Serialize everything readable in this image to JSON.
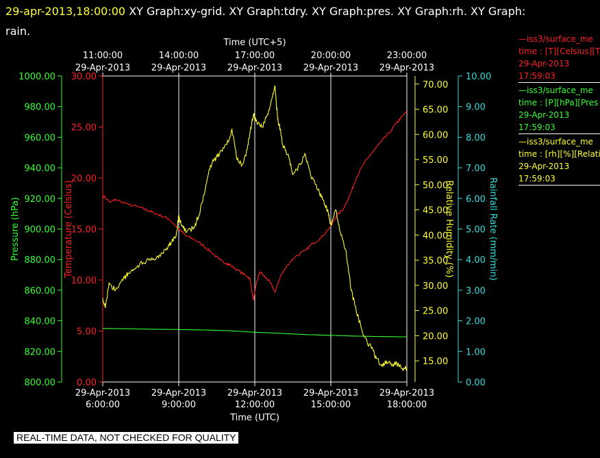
{
  "header": {
    "datetime": "29-apr-2013,18:00:00",
    "graphs_line1": "XY Graph:xy-grid.  XY Graph:tdry.  XY Graph:pres.  XY Graph:rh.  XY Graph:",
    "graphs_line2": "rain."
  },
  "legend": [
    {
      "name": "—iss3/surface_me",
      "var": "time : [T][Celsius][T",
      "date": "29-Apr-2013",
      "time": "17:59:03",
      "color": "#ff2020"
    },
    {
      "name": "—iss3/surface_me",
      "var": "time : [P][hPa][Pres",
      "date": "29-Apr-2013",
      "time": "17:59:03",
      "color": "#33ff33"
    },
    {
      "name": "—iss3/surface_me",
      "var": "time : [rh][%][Relati",
      "date": "29-Apr-2013",
      "time": "17:59:03",
      "color": "#ffff33"
    }
  ],
  "footer": {
    "quality_note": "REAL-TIME DATA, NOT CHECKED FOR QUALITY"
  },
  "chart_data": {
    "type": "line",
    "x_bottom": {
      "label": "Time (UTC)",
      "ticks": [
        {
          "date": "29-Apr-2013",
          "time": "6:00:00"
        },
        {
          "date": "29-Apr-2013",
          "time": "9:00:00"
        },
        {
          "date": "29-Apr-2013",
          "time": "12:00:00"
        },
        {
          "date": "29-Apr-2013",
          "time": "15:00:00"
        },
        {
          "date": "29-Apr-2013",
          "time": "18:00:00"
        }
      ],
      "range_hours_utc": [
        6,
        18
      ]
    },
    "x_top": {
      "label": "Time (UTC+5)",
      "ticks": [
        {
          "date": "29-Apr-2013",
          "time": "11:00:00"
        },
        {
          "date": "29-Apr-2013",
          "time": "14:00:00"
        },
        {
          "date": "29-Apr-2013",
          "time": "17:00:00"
        },
        {
          "date": "29-Apr-2013",
          "time": "20:00:00"
        },
        {
          "date": "29-Apr-2013",
          "time": "23:00:00"
        }
      ]
    },
    "axes": {
      "pressure": {
        "label": "Pressure (hPa)",
        "color": "#33ff33",
        "ylim": [
          800,
          1000
        ],
        "ticks": [
          "800.00",
          "820.00",
          "840.00",
          "860.00",
          "880.00",
          "900.00",
          "920.00",
          "940.00",
          "960.00",
          "980.00",
          "1000.00"
        ]
      },
      "temperature": {
        "label": "Temperature (Celsius)",
        "color": "#ff2020",
        "ylim": [
          0,
          30
        ],
        "ticks": [
          "0.00",
          "5.00",
          "10.00",
          "15.00",
          "20.00",
          "25.00",
          "30.00"
        ]
      },
      "rh": {
        "label": "Relative Humidity (%)",
        "color": "#ffff33",
        "ylim": [
          10.8,
          71.6
        ],
        "ticks": [
          "15.00",
          "20.00",
          "25.00",
          "30.00",
          "35.00",
          "40.00",
          "45.00",
          "50.00",
          "55.00",
          "60.00",
          "65.00",
          "70.00"
        ]
      },
      "rain": {
        "label": "Rainfall Rate (mm/min)",
        "color": "#33dddd",
        "ylim": [
          0,
          10
        ],
        "ticks": [
          "0.00",
          "1.00",
          "2.00",
          "3.00",
          "4.00",
          "5.00",
          "6.00",
          "7.00",
          "8.00",
          "9.00",
          "10.00"
        ]
      }
    },
    "grid": "vertical",
    "series": [
      {
        "name": "iss3/surface_me",
        "axis": "temperature",
        "color": "#ff2020",
        "x": [
          6.0,
          6.3,
          6.5,
          7.0,
          7.5,
          7.8,
          8.0,
          8.3,
          8.6,
          9.0,
          9.3,
          9.6,
          10.0,
          10.3,
          10.6,
          10.9,
          11.0,
          11.3,
          11.6,
          11.8,
          11.95,
          12.05,
          12.2,
          12.4,
          12.6,
          12.8,
          13.0,
          13.3,
          13.6,
          14.0,
          14.3,
          14.6,
          15.0,
          15.2,
          15.5,
          15.8,
          16.0,
          16.3,
          16.6,
          17.0,
          17.3,
          17.6,
          17.8,
          18.0
        ],
        "values": [
          18.3,
          17.6,
          17.9,
          17.4,
          17.1,
          16.8,
          16.6,
          16.3,
          16.0,
          15.0,
          14.3,
          14.0,
          13.3,
          12.7,
          12.0,
          11.6,
          11.5,
          11.0,
          10.5,
          10.2,
          8.0,
          9.5,
          10.8,
          10.3,
          9.8,
          8.8,
          10.3,
          11.5,
          12.3,
          12.9,
          13.6,
          14.1,
          15.3,
          16.2,
          17.0,
          18.6,
          20.0,
          21.4,
          22.4,
          23.6,
          24.4,
          25.4,
          26.0,
          26.5
        ]
      },
      {
        "name": "iss3/surface_me",
        "axis": "pressure",
        "color": "#33ff33",
        "x": [
          6.0,
          7.0,
          8.0,
          9.0,
          10.0,
          11.0,
          12.0,
          13.0,
          14.0,
          15.0,
          16.0,
          17.0,
          18.0
        ],
        "values": [
          835.0,
          834.8,
          834.5,
          834.3,
          834.0,
          833.5,
          832.5,
          831.8,
          831.0,
          830.5,
          830.0,
          829.7,
          829.5
        ]
      },
      {
        "name": "iss3/surface_me",
        "axis": "rh",
        "color": "#ffff33",
        "x": [
          6.0,
          6.1,
          6.25,
          6.5,
          6.8,
          7.0,
          7.3,
          7.6,
          7.9,
          8.2,
          8.5,
          8.7,
          8.9,
          9.0,
          9.1,
          9.3,
          9.6,
          9.8,
          10.0,
          10.2,
          10.4,
          10.6,
          10.9,
          11.1,
          11.3,
          11.5,
          11.7,
          11.8,
          11.95,
          12.1,
          12.3,
          12.5,
          12.7,
          12.8,
          12.9,
          13.0,
          13.1,
          13.3,
          13.5,
          13.8,
          14.0,
          14.2,
          14.5,
          14.7,
          14.9,
          15.0,
          15.2,
          15.4,
          15.6,
          15.8,
          16.0,
          16.3,
          16.6,
          16.8,
          17.0,
          17.2,
          17.4,
          17.6,
          17.8,
          18.0
        ],
        "values": [
          27.5,
          25.5,
          30.5,
          29.0,
          31.0,
          32.5,
          33.5,
          34.5,
          35.0,
          35.5,
          37.0,
          38.5,
          40.0,
          44.0,
          42.0,
          40.5,
          41.5,
          44.0,
          48.0,
          53.0,
          55.0,
          56.0,
          58.0,
          61.0,
          55.0,
          54.0,
          57.0,
          60.0,
          64.0,
          62.0,
          61.5,
          64.0,
          67.5,
          69.5,
          63.0,
          61.0,
          58.0,
          56.0,
          52.0,
          54.0,
          56.0,
          52.0,
          49.0,
          47.0,
          44.5,
          42.0,
          45.0,
          40.0,
          37.0,
          29.0,
          25.0,
          20.0,
          17.5,
          15.5,
          14.0,
          15.0,
          14.0,
          14.5,
          13.5,
          13.5
        ]
      }
    ]
  }
}
